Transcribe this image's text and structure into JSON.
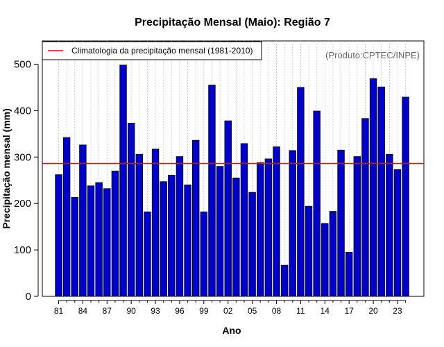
{
  "chart_data": {
    "type": "bar",
    "title": "Precipitação Mensal (Maio): Região 7",
    "xlabel": "Ano",
    "ylabel": "Precipitação mensal (mm)",
    "ylim": [
      0,
      550
    ],
    "yticks": [
      0,
      100,
      200,
      300,
      400,
      500
    ],
    "grid": "vertical dotted",
    "categories": [
      "81",
      "82",
      "83",
      "84",
      "85",
      "86",
      "87",
      "88",
      "89",
      "90",
      "91",
      "92",
      "93",
      "94",
      "95",
      "96",
      "97",
      "98",
      "99",
      "00",
      "01",
      "02",
      "03",
      "04",
      "05",
      "06",
      "07",
      "08",
      "09",
      "10",
      "11",
      "12",
      "13",
      "14",
      "15",
      "16",
      "17",
      "18",
      "19",
      "20",
      "21",
      "22",
      "23",
      "24"
    ],
    "tick_labels": [
      "81",
      "84",
      "87",
      "90",
      "93",
      "96",
      "99",
      "02",
      "05",
      "08",
      "11",
      "14",
      "17",
      "20",
      "23"
    ],
    "series": [
      {
        "name": "Precipitação mensal",
        "color": "#0000cd",
        "values": [
          262,
          342,
          213,
          326,
          238,
          245,
          232,
          270,
          498,
          373,
          306,
          182,
          317,
          247,
          261,
          301,
          240,
          336,
          182,
          455,
          280,
          378,
          255,
          329,
          224,
          288,
          296,
          322,
          67,
          314,
          450,
          194,
          399,
          157,
          183,
          315,
          95,
          301,
          383,
          469,
          451,
          306,
          273,
          429
        ]
      }
    ],
    "reference_line": {
      "label": "Climatologia da precipitação mensal (1981-2010)",
      "value": 286,
      "color": "#ff0000"
    },
    "legend_position": "top-left",
    "source_note": "(Produto:CPTEC/INPE)"
  }
}
